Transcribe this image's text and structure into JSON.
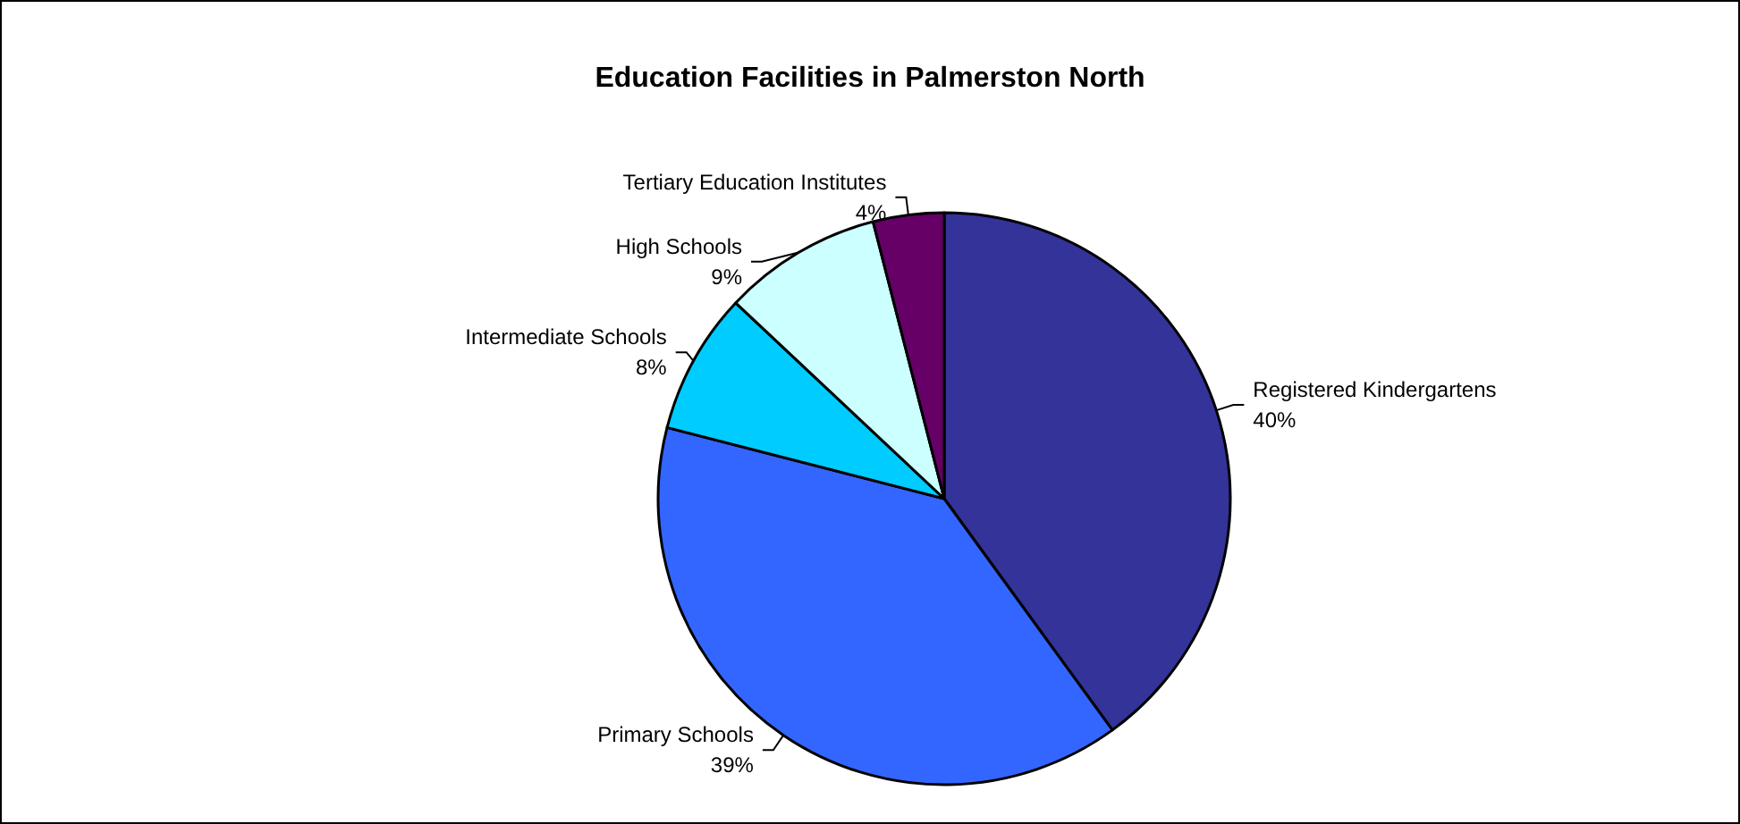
{
  "chart_data": {
    "type": "pie",
    "title": "Education Facilities in Palmerston North",
    "categories": [
      "Registered Kindergartens",
      "Primary Schools",
      "Intermediate Schools",
      "High Schools",
      "Tertiary Education Institutes"
    ],
    "values": [
      40,
      39,
      8,
      9,
      4
    ],
    "value_labels": [
      "40%",
      "39%",
      "8%",
      "9%",
      "4%"
    ],
    "colors": [
      "#333399",
      "#3366ff",
      "#00ccff",
      "#ccffff",
      "#660066"
    ],
    "legend": false
  }
}
